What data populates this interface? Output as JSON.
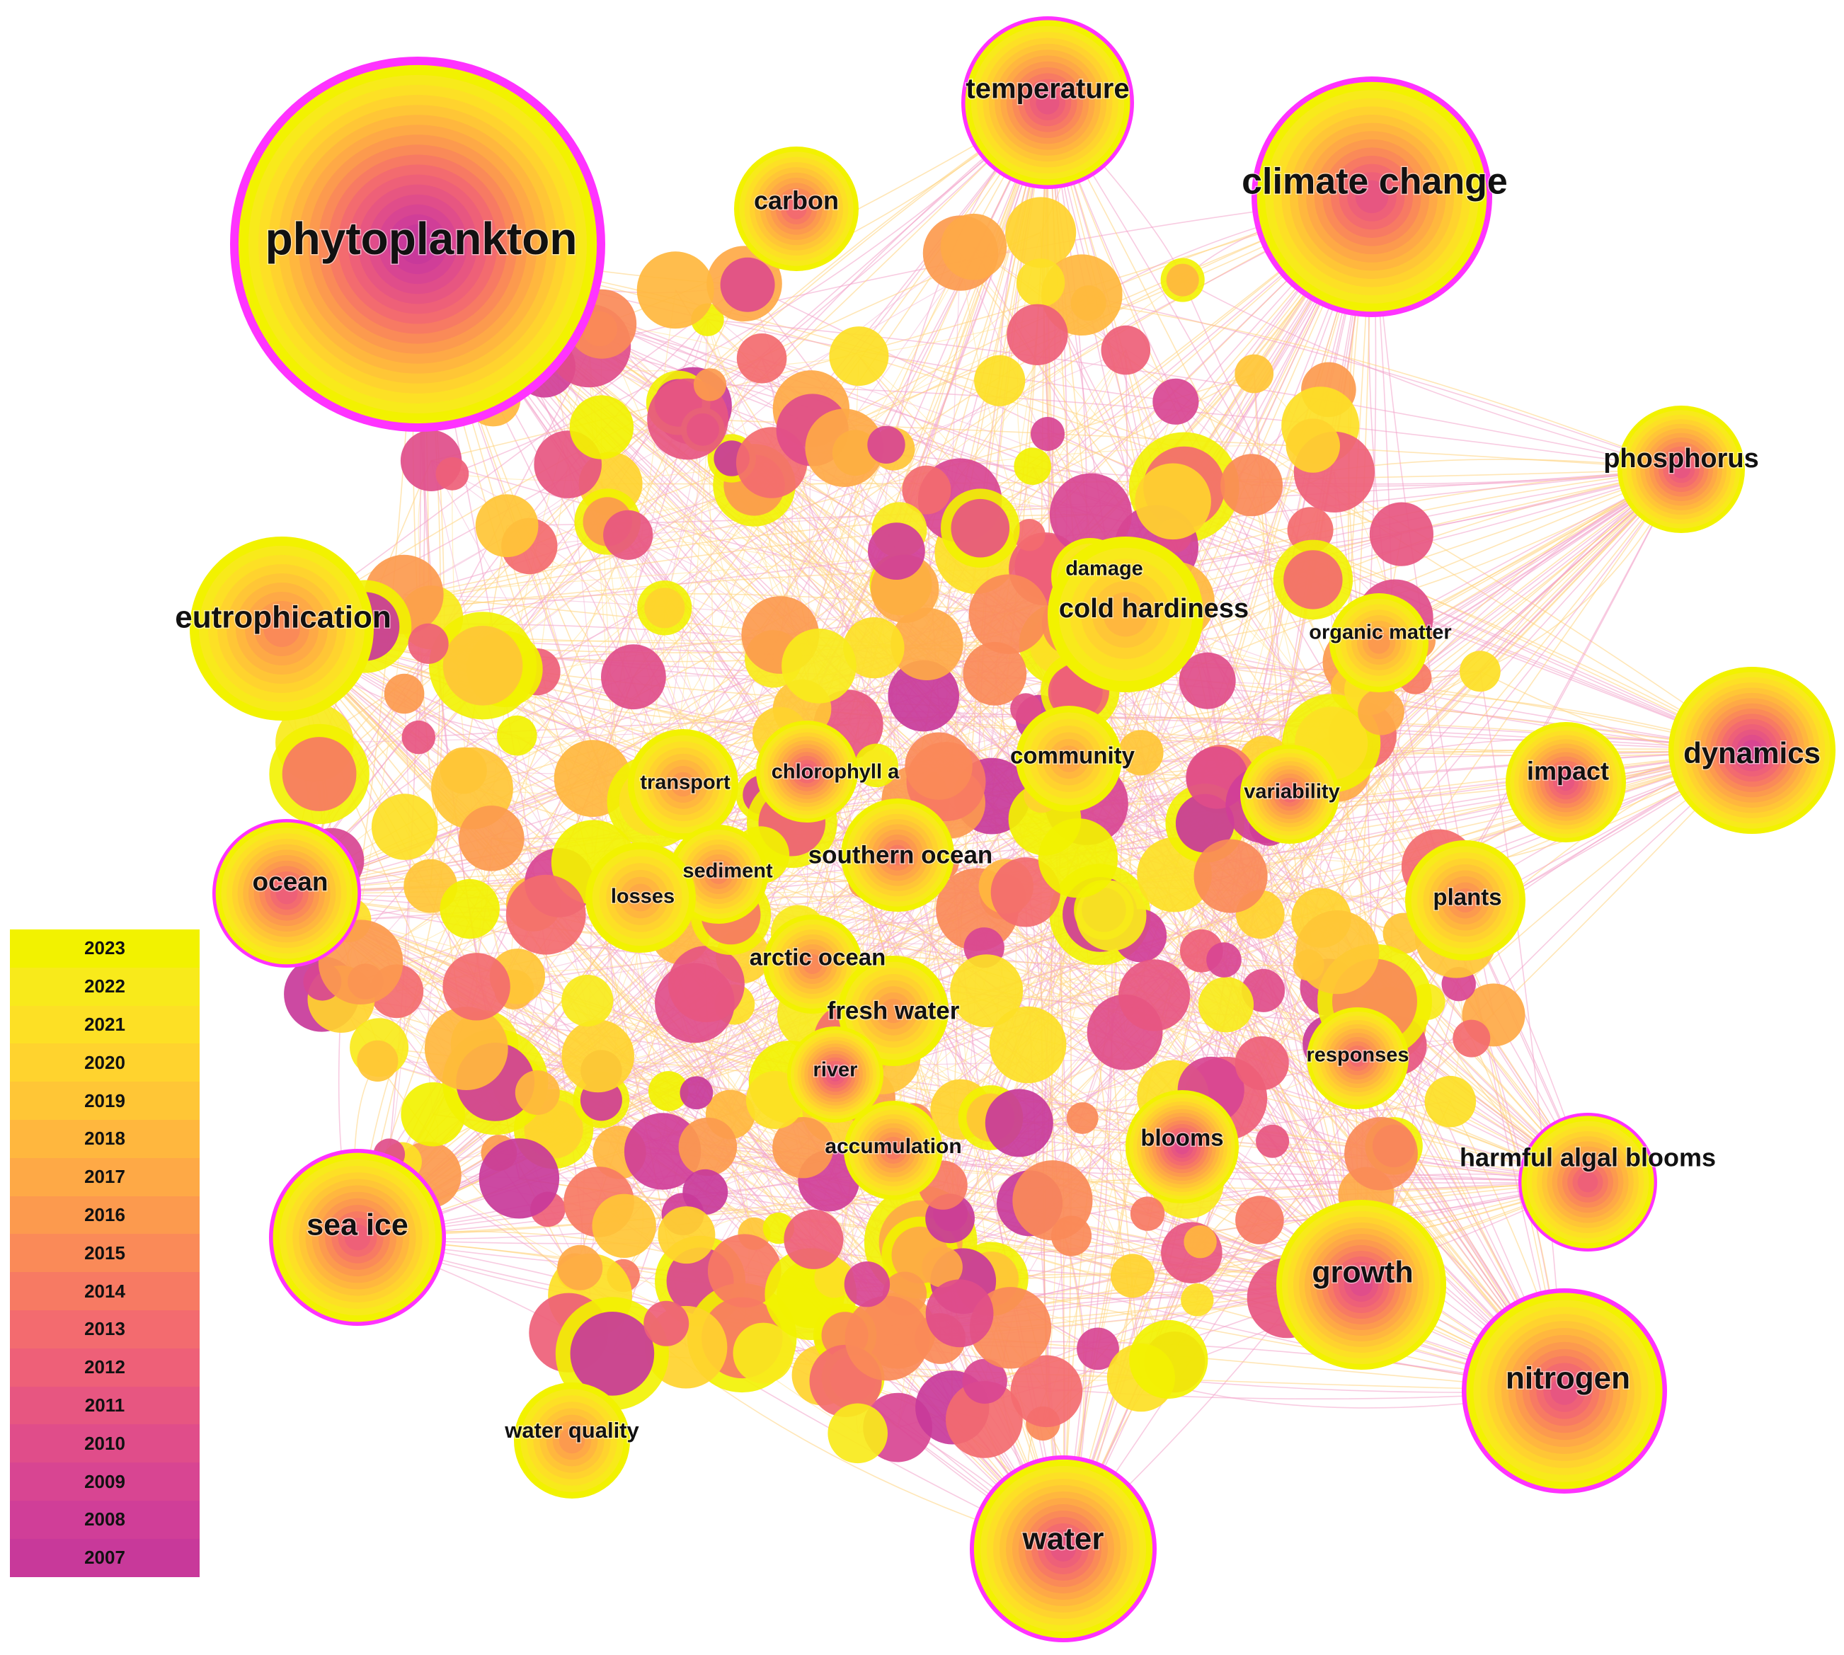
{
  "palette": {
    "2007": "#c8399a",
    "2008": "#d03e98",
    "2009": "#d84592",
    "2010": "#e04d8a",
    "2011": "#e75681",
    "2012": "#ee6078",
    "2013": "#f36b6f",
    "2014": "#f77a63",
    "2015": "#fa8a58",
    "2016": "#fc9a4e",
    "2017": "#fea946",
    "2018": "#ffb73e",
    "2019": "#ffc636",
    "2020": "#ffd32e",
    "2021": "#fde025",
    "2022": "#f8ea1b",
    "2023": "#f2f200",
    "ring": "#ff33ff"
  },
  "legend": {
    "years": [
      "2023",
      "2022",
      "2021",
      "2020",
      "2019",
      "2018",
      "2017",
      "2016",
      "2015",
      "2014",
      "2013",
      "2012",
      "2011",
      "2010",
      "2009",
      "2008",
      "2007"
    ]
  },
  "keywords": [
    {
      "id": "phytoplankton",
      "label": "phytoplankton",
      "size": 62,
      "first_year": 2007,
      "last_year": 2023,
      "burst": true
    },
    {
      "id": "temperature",
      "label": "temperature",
      "size": 40,
      "first_year": 2011,
      "last_year": 2023,
      "burst": true
    },
    {
      "id": "climate-change",
      "label": "climate change",
      "size": 52,
      "first_year": 2011,
      "last_year": 2023,
      "burst": true
    },
    {
      "id": "carbon",
      "label": "carbon",
      "size": 34,
      "first_year": 2013,
      "last_year": 2023,
      "burst": false
    },
    {
      "id": "phosphorus",
      "label": "phosphorus",
      "size": 38,
      "first_year": 2011,
      "last_year": 2023,
      "burst": false
    },
    {
      "id": "eutrophication",
      "label": "eutrophication",
      "size": 44,
      "first_year": 2015,
      "last_year": 2023,
      "burst": false
    },
    {
      "id": "damage",
      "label": "damage",
      "size": 28,
      "first_year": 2018,
      "last_year": 2023,
      "burst": false
    },
    {
      "id": "cold-hardiness",
      "label": "cold hardiness",
      "size": 38,
      "first_year": 2018,
      "last_year": 2023,
      "burst": false
    },
    {
      "id": "organic-matter",
      "label": "organic matter",
      "size": 28,
      "first_year": 2016,
      "last_year": 2023,
      "burst": false
    },
    {
      "id": "dynamics",
      "label": "dynamics",
      "size": 42,
      "first_year": 2009,
      "last_year": 2023,
      "burst": false
    },
    {
      "id": "impact",
      "label": "impact",
      "size": 36,
      "first_year": 2011,
      "last_year": 2023,
      "burst": false
    },
    {
      "id": "community",
      "label": "community",
      "size": 32,
      "first_year": 2017,
      "last_year": 2023,
      "burst": false
    },
    {
      "id": "variability",
      "label": "variability",
      "size": 28,
      "first_year": 2013,
      "last_year": 2023,
      "burst": false
    },
    {
      "id": "transport",
      "label": "transport",
      "size": 28,
      "first_year": 2016,
      "last_year": 2023,
      "burst": false
    },
    {
      "id": "chlorophyll-a",
      "label": "chlorophyll a",
      "size": 28,
      "first_year": 2012,
      "last_year": 2023,
      "burst": false
    },
    {
      "id": "ocean",
      "label": "ocean",
      "size": 36,
      "first_year": 2012,
      "last_year": 2023,
      "burst": true
    },
    {
      "id": "southern-ocean",
      "label": "southern ocean",
      "size": 34,
      "first_year": 2014,
      "last_year": 2023,
      "burst": false
    },
    {
      "id": "sediment",
      "label": "sediment",
      "size": 28,
      "first_year": 2015,
      "last_year": 2023,
      "burst": false
    },
    {
      "id": "losses",
      "label": "losses",
      "size": 28,
      "first_year": 2017,
      "last_year": 2023,
      "burst": false
    },
    {
      "id": "plants",
      "label": "plants",
      "size": 32,
      "first_year": 2015,
      "last_year": 2023,
      "burst": false
    },
    {
      "id": "arctic-ocean",
      "label": "arctic ocean",
      "size": 32,
      "first_year": 2015,
      "last_year": 2023,
      "burst": false
    },
    {
      "id": "fresh-water",
      "label": "fresh water",
      "size": 34,
      "first_year": 2016,
      "last_year": 2023,
      "burst": false
    },
    {
      "id": "responses",
      "label": "responses",
      "size": 28,
      "first_year": 2013,
      "last_year": 2023,
      "burst": false
    },
    {
      "id": "river",
      "label": "river",
      "size": 28,
      "first_year": 2011,
      "last_year": 2023,
      "burst": false
    },
    {
      "id": "accumulation",
      "label": "accumulation",
      "size": 30,
      "first_year": 2014,
      "last_year": 2023,
      "burst": false
    },
    {
      "id": "blooms",
      "label": "blooms",
      "size": 32,
      "first_year": 2010,
      "last_year": 2023,
      "burst": false
    },
    {
      "id": "harmful-algal-blooms",
      "label": "harmful algal blooms",
      "size": 34,
      "first_year": 2012,
      "last_year": 2023,
      "burst": true
    },
    {
      "id": "sea-ice",
      "label": "sea ice",
      "size": 42,
      "first_year": 2012,
      "last_year": 2023,
      "burst": true
    },
    {
      "id": "growth",
      "label": "growth",
      "size": 42,
      "first_year": 2010,
      "last_year": 2023,
      "burst": false
    },
    {
      "id": "nitrogen",
      "label": "nitrogen",
      "size": 44,
      "first_year": 2011,
      "last_year": 2023,
      "burst": true
    },
    {
      "id": "water-quality",
      "label": "water quality",
      "size": 30,
      "first_year": 2016,
      "last_year": 2023,
      "burst": false
    },
    {
      "id": "water",
      "label": "water",
      "size": 44,
      "first_year": 2011,
      "last_year": 2023,
      "burst": true
    }
  ]
}
